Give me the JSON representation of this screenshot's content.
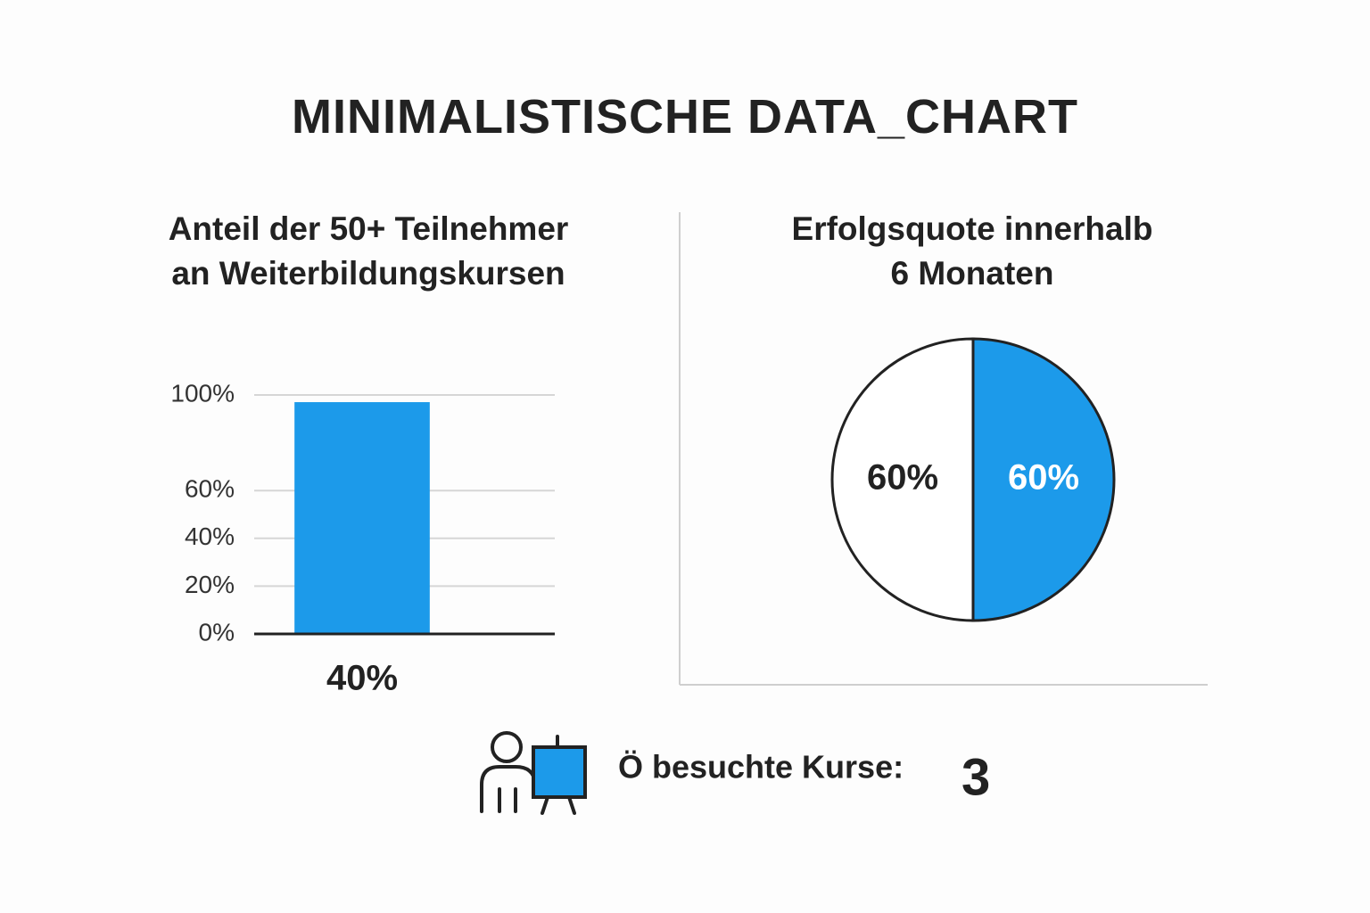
{
  "title": "MINIMALISTISCHE DATA_CHART",
  "chart_data": [
    {
      "type": "bar",
      "title": "Anteil der 50+ Teilnehmer an Weiterbildungskursen",
      "categories": [
        "40%"
      ],
      "values": [
        97
      ],
      "color": "#1c9aea",
      "ylim": [
        0,
        100
      ],
      "yticks": [
        {
          "value": 0,
          "label": "0%"
        },
        {
          "value": 20,
          "label": "20%"
        },
        {
          "value": 40,
          "label": "40%"
        },
        {
          "value": 60,
          "label": "60%"
        },
        {
          "value": 100,
          "label": "100%"
        }
      ],
      "grid": true
    },
    {
      "type": "pie",
      "title": "Erfolgsquote innerhalb 6 Monaten",
      "categories": [
        null,
        null
      ],
      "values": [
        60,
        60
      ],
      "value_labels": [
        "60%",
        "60%"
      ],
      "colors": [
        "#1c9aea",
        "#ffffff"
      ]
    }
  ],
  "footer": {
    "label": "Ö besuchte Kurse:",
    "value": 3
  }
}
